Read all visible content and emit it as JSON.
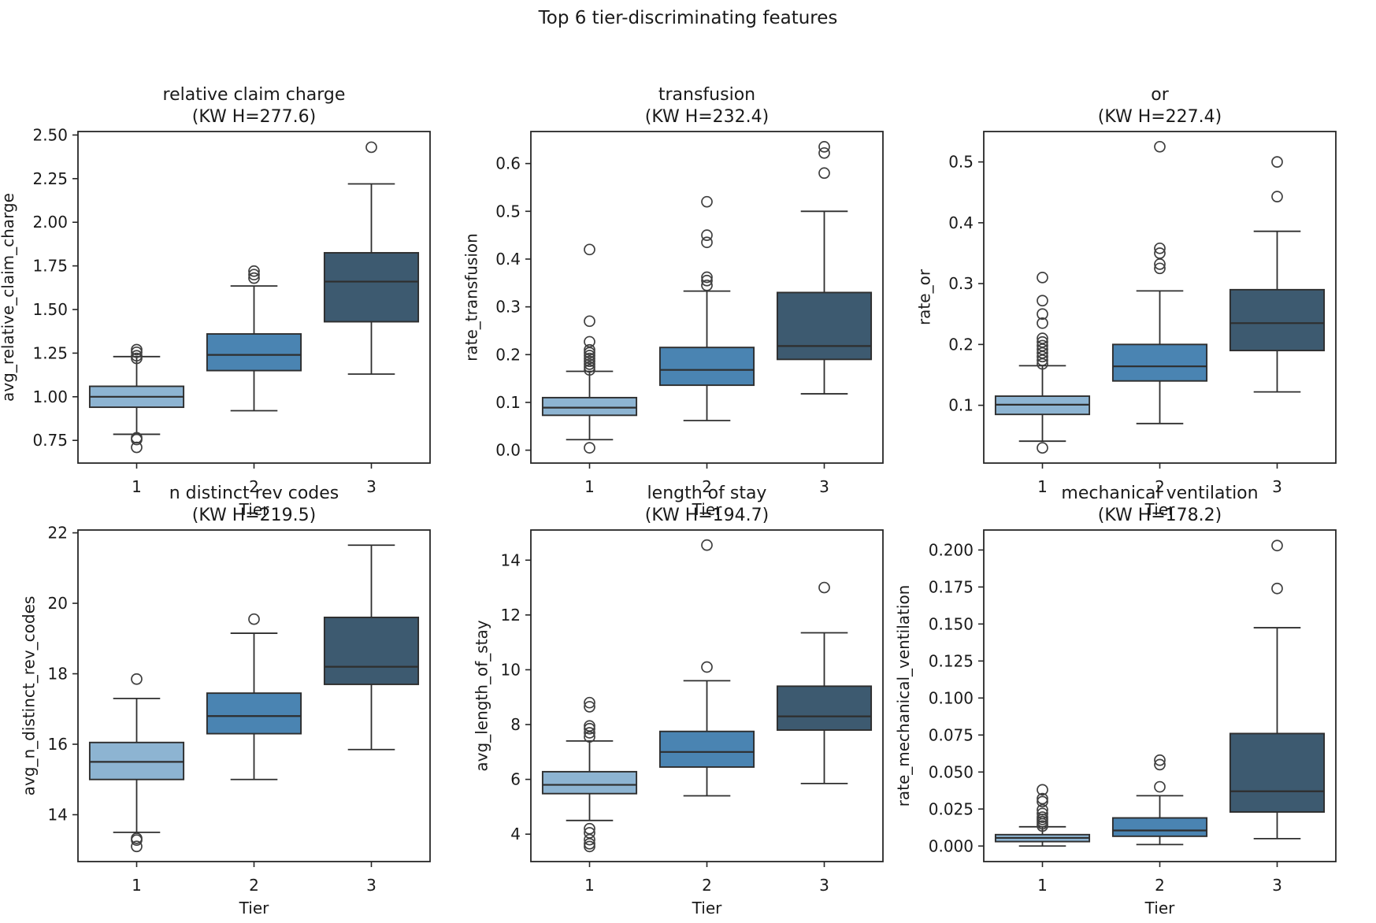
{
  "figure": {
    "title": "Top 6 tier-discriminating features",
    "background": "#ffffff"
  },
  "palette": {
    "tier_fill_colors": [
      "#8db4d2",
      "#4a84b2",
      "#3d5a70"
    ],
    "box_edge_color": "#2e2e2e",
    "median_color": "#2e2e2e",
    "whisker_color": "#2e2e2e",
    "flier_edge_color": "#3f3f3f",
    "spine_color": "#262626",
    "text_color": "#1a1a1a"
  },
  "x_axis": {
    "label": "Tier",
    "categories": [
      "1",
      "2",
      "3"
    ]
  },
  "chart_data": [
    {
      "type": "box",
      "title": "relative claim charge",
      "subtitle": "(KW H=277.6)",
      "kw_h": 277.6,
      "ylabel": "avg_relative_claim_charge",
      "ylim": [
        0.62,
        2.52
      ],
      "ytick_values": [
        0.75,
        1.0,
        1.25,
        1.5,
        1.75,
        2.0,
        2.25,
        2.5
      ],
      "ytick_labels": [
        "0.75",
        "1.00",
        "1.25",
        "1.50",
        "1.75",
        "2.00",
        "2.25",
        "2.50"
      ],
      "boxes": [
        {
          "category": "1",
          "whislo": 0.785,
          "q1": 0.94,
          "med": 1.0,
          "q3": 1.06,
          "whishi": 1.23,
          "fliers": [
            0.71,
            0.755,
            0.765,
            1.22,
            1.235,
            1.255,
            1.27
          ]
        },
        {
          "category": "2",
          "whislo": 0.92,
          "q1": 1.15,
          "med": 1.24,
          "q3": 1.36,
          "whishi": 1.635,
          "fliers": [
            1.68,
            1.7,
            1.72
          ]
        },
        {
          "category": "3",
          "whislo": 1.13,
          "q1": 1.43,
          "med": 1.66,
          "q3": 1.825,
          "whishi": 2.22,
          "fliers": [
            2.43
          ]
        }
      ]
    },
    {
      "type": "box",
      "title": "transfusion",
      "subtitle": "(KW H=232.4)",
      "kw_h": 232.4,
      "ylabel": "rate_transfusion",
      "ylim": [
        -0.027,
        0.667
      ],
      "ytick_values": [
        0.0,
        0.1,
        0.2,
        0.3,
        0.4,
        0.5,
        0.6
      ],
      "ytick_labels": [
        "0.0",
        "0.1",
        "0.2",
        "0.3",
        "0.4",
        "0.5",
        "0.6"
      ],
      "boxes": [
        {
          "category": "1",
          "whislo": 0.022,
          "q1": 0.073,
          "med": 0.089,
          "q3": 0.11,
          "whishi": 0.165,
          "fliers": [
            0.005,
            0.168,
            0.174,
            0.18,
            0.186,
            0.192,
            0.198,
            0.204,
            0.21,
            0.227,
            0.27,
            0.42
          ]
        },
        {
          "category": "2",
          "whislo": 0.062,
          "q1": 0.136,
          "med": 0.168,
          "q3": 0.215,
          "whishi": 0.333,
          "fliers": [
            0.345,
            0.355,
            0.362,
            0.435,
            0.45,
            0.52
          ]
        },
        {
          "category": "3",
          "whislo": 0.118,
          "q1": 0.19,
          "med": 0.218,
          "q3": 0.33,
          "whishi": 0.5,
          "fliers": [
            0.58,
            0.622,
            0.635
          ]
        }
      ]
    },
    {
      "type": "box",
      "title": "or",
      "subtitle": "(KW H=227.4)",
      "kw_h": 227.4,
      "ylabel": "rate_or",
      "ylim": [
        0.005,
        0.55
      ],
      "ytick_values": [
        0.1,
        0.2,
        0.3,
        0.4,
        0.5
      ],
      "ytick_labels": [
        "0.1",
        "0.2",
        "0.3",
        "0.4",
        "0.5"
      ],
      "boxes": [
        {
          "category": "1",
          "whislo": 0.041,
          "q1": 0.085,
          "med": 0.101,
          "q3": 0.115,
          "whishi": 0.165,
          "fliers": [
            0.03,
            0.168,
            0.174,
            0.18,
            0.186,
            0.192,
            0.198,
            0.204,
            0.21,
            0.235,
            0.25,
            0.272,
            0.31
          ]
        },
        {
          "category": "2",
          "whislo": 0.07,
          "q1": 0.14,
          "med": 0.164,
          "q3": 0.2,
          "whishi": 0.288,
          "fliers": [
            0.325,
            0.332,
            0.35,
            0.358,
            0.525
          ]
        },
        {
          "category": "3",
          "whislo": 0.122,
          "q1": 0.19,
          "med": 0.235,
          "q3": 0.29,
          "whishi": 0.386,
          "fliers": [
            0.443,
            0.5
          ]
        }
      ]
    },
    {
      "type": "box",
      "title": "n distinct rev codes",
      "subtitle": "(KW H=219.5)",
      "kw_h": 219.5,
      "ylabel": "avg_n_distinct_rev_codes",
      "ylim": [
        12.67,
        22.08
      ],
      "ytick_values": [
        14,
        16,
        18,
        20,
        22
      ],
      "ytick_labels": [
        "14",
        "16",
        "18",
        "20",
        "22"
      ],
      "boxes": [
        {
          "category": "1",
          "whislo": 13.5,
          "q1": 15.0,
          "med": 15.5,
          "q3": 16.05,
          "whishi": 17.3,
          "fliers": [
            13.1,
            13.28,
            13.33,
            17.85
          ]
        },
        {
          "category": "2",
          "whislo": 15.0,
          "q1": 16.3,
          "med": 16.8,
          "q3": 17.45,
          "whishi": 19.15,
          "fliers": [
            19.55
          ]
        },
        {
          "category": "3",
          "whislo": 15.85,
          "q1": 17.7,
          "med": 18.2,
          "q3": 19.6,
          "whishi": 21.65,
          "fliers": []
        }
      ]
    },
    {
      "type": "box",
      "title": "length of stay",
      "subtitle": "(KW H=194.7)",
      "kw_h": 194.7,
      "ylabel": "avg_length_of_stay",
      "ylim": [
        3.0,
        15.1
      ],
      "ytick_values": [
        4,
        6,
        8,
        10,
        12,
        14
      ],
      "ytick_labels": [
        "4",
        "6",
        "8",
        "10",
        "12",
        "14"
      ],
      "boxes": [
        {
          "category": "1",
          "whislo": 4.5,
          "q1": 5.48,
          "med": 5.8,
          "q3": 6.28,
          "whishi": 7.4,
          "fliers": [
            3.55,
            3.65,
            3.8,
            4.05,
            4.2,
            7.55,
            7.7,
            7.85,
            7.95,
            8.65,
            8.8
          ]
        },
        {
          "category": "2",
          "whislo": 5.4,
          "q1": 6.45,
          "med": 7.0,
          "q3": 7.75,
          "whishi": 9.6,
          "fliers": [
            10.1,
            14.55
          ]
        },
        {
          "category": "3",
          "whislo": 5.85,
          "q1": 7.8,
          "med": 8.3,
          "q3": 9.4,
          "whishi": 11.35,
          "fliers": [
            13.0
          ]
        }
      ]
    },
    {
      "type": "box",
      "title": "mechanical ventilation",
      "subtitle": "(KW H=178.2)",
      "kw_h": 178.2,
      "ylabel": "rate_mechanical_ventilation",
      "ylim": [
        -0.0105,
        0.2135
      ],
      "ytick_values": [
        0.0,
        0.025,
        0.05,
        0.075,
        0.1,
        0.125,
        0.15,
        0.175,
        0.2
      ],
      "ytick_labels": [
        "0.000",
        "0.025",
        "0.050",
        "0.075",
        "0.100",
        "0.125",
        "0.150",
        "0.175",
        "0.200"
      ],
      "boxes": [
        {
          "category": "1",
          "whislo": 0.0,
          "q1": 0.003,
          "med": 0.0055,
          "q3": 0.0077,
          "whishi": 0.013,
          "fliers": [
            0.0135,
            0.015,
            0.0165,
            0.018,
            0.0195,
            0.022,
            0.0245,
            0.03,
            0.032,
            0.038
          ]
        },
        {
          "category": "2",
          "whislo": 0.001,
          "q1": 0.0066,
          "med": 0.0105,
          "q3": 0.019,
          "whishi": 0.034,
          "fliers": [
            0.04,
            0.055,
            0.058
          ]
        },
        {
          "category": "3",
          "whislo": 0.005,
          "q1": 0.023,
          "med": 0.037,
          "q3": 0.076,
          "whishi": 0.1475,
          "fliers": [
            0.174,
            0.203
          ]
        }
      ]
    }
  ]
}
